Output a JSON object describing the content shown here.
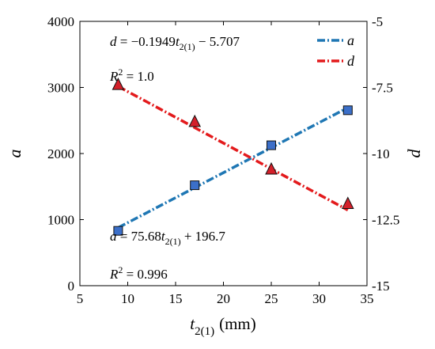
{
  "chart_data": {
    "type": "line",
    "x": [
      9,
      17,
      25,
      33
    ],
    "xlim": [
      5,
      35
    ],
    "xticks": [
      5,
      10,
      15,
      20,
      25,
      30,
      35
    ],
    "xlabel_main": "t",
    "xlabel_sub": "2(1)",
    "xlabel_unit": "(mm)",
    "y_left": {
      "label": "a",
      "lim": [
        0,
        4000
      ],
      "ticks": [
        0,
        1000,
        2000,
        3000,
        4000
      ],
      "tick_labels": [
        "0",
        "1000",
        "2000",
        "3000",
        "4000"
      ]
    },
    "y_right": {
      "label": "d",
      "lim": [
        -15,
        -5
      ],
      "ticks": [
        -15,
        -12.5,
        -10,
        -7.5,
        -5
      ],
      "tick_labels": [
        "-15",
        "-12.5",
        "-10",
        "-7.5",
        "-5"
      ]
    },
    "series": [
      {
        "name": "a",
        "axis": "left",
        "marker": "square",
        "color": "#1f77b4",
        "marker_color": "#3b6fc9",
        "values": [
          830,
          1520,
          2125,
          2655
        ],
        "fit": {
          "slope": 75.68,
          "intercept": 196.7
        }
      },
      {
        "name": "d",
        "axis": "right",
        "marker": "triangle",
        "color": "#e31a1c",
        "marker_color": "#d4202a",
        "values": [
          -7.4,
          -8.8,
          -10.6,
          -11.9
        ],
        "fit": {
          "slope": -0.1949,
          "intercept": -5.707
        }
      }
    ],
    "annotations": {
      "d_eq": {
        "lhs": "d",
        "mid": " = −0.1949",
        "var": "t",
        "sub": "2(1)",
        "rhs": " − 5.707"
      },
      "d_r2": {
        "var": "R",
        "sup": "2",
        "rhs": " = 1.0"
      },
      "a_eq": {
        "lhs": "a",
        "mid": " = 75.68",
        "var": "t",
        "sub": "2(1)",
        "rhs": " + 196.7"
      },
      "a_r2": {
        "var": "R",
        "sup": "2",
        "rhs": " = 0.996"
      }
    },
    "legend": {
      "placement": "top-right",
      "entries": [
        "a",
        "d"
      ]
    }
  }
}
